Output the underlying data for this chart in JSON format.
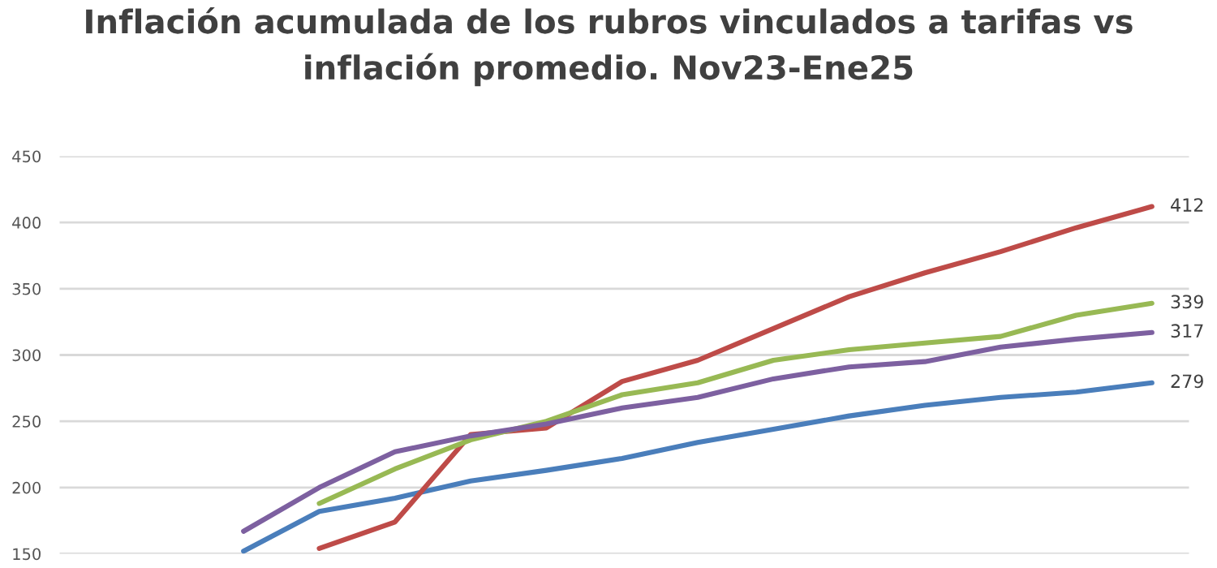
{
  "chart_data": {
    "type": "line",
    "title": "Inflación acumulada de los rubros vinculados a tarifas vs\ninflación promedio. Nov23-Ene25",
    "categories": [
      null,
      null,
      null,
      null,
      null,
      null,
      null,
      null,
      null,
      null,
      null,
      null,
      null,
      null,
      null
    ],
    "series": [
      {
        "color": "#4a7ebb",
        "values": [
          null,
          null,
          152,
          182,
          192,
          205,
          213,
          222,
          234,
          244,
          254,
          262,
          268,
          272,
          279
        ],
        "value_labels": [
          null,
          null,
          null,
          null,
          null,
          null,
          null,
          null,
          null,
          null,
          null,
          null,
          null,
          null,
          "279"
        ]
      },
      {
        "color": "#be4b48",
        "values": [
          null,
          null,
          null,
          154,
          174,
          240,
          245,
          280,
          296,
          320,
          344,
          362,
          378,
          396,
          412
        ],
        "value_labels": [
          null,
          null,
          null,
          null,
          null,
          null,
          null,
          null,
          null,
          null,
          null,
          null,
          null,
          null,
          "412"
        ]
      },
      {
        "color": "#98b954",
        "values": [
          null,
          null,
          null,
          188,
          214,
          236,
          250,
          270,
          279,
          296,
          304,
          309,
          314,
          330,
          339
        ],
        "value_labels": [
          null,
          null,
          null,
          null,
          null,
          null,
          null,
          null,
          null,
          null,
          null,
          null,
          null,
          null,
          "339"
        ]
      },
      {
        "color": "#7d60a0",
        "values": [
          null,
          null,
          167,
          200,
          227,
          239,
          248,
          260,
          268,
          282,
          291,
          295,
          306,
          312,
          317
        ],
        "value_labels": [
          null,
          null,
          null,
          null,
          null,
          null,
          null,
          null,
          null,
          null,
          null,
          null,
          null,
          null,
          "317"
        ]
      }
    ],
    "ylim": [
      150,
      450
    ],
    "yticks": [
      150,
      200,
      250,
      300,
      350,
      400,
      450
    ],
    "grid": "y",
    "tick_labels": "y",
    "marker": "none",
    "line_style": "solid",
    "legend": false
  }
}
